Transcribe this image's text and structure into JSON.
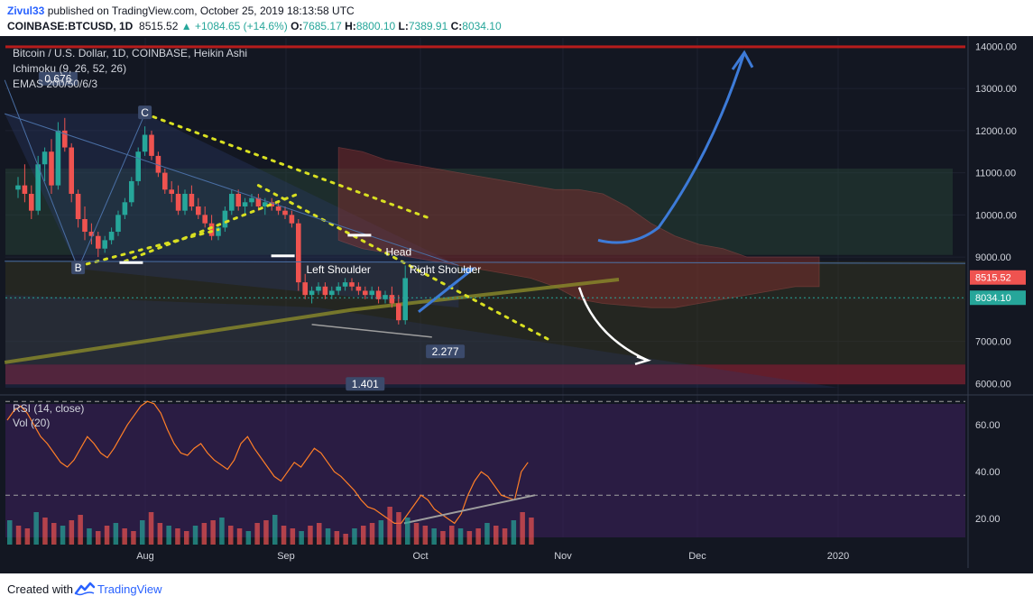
{
  "header": {
    "author": "Zivul33",
    "published": "published on TradingView.com, October 25, 2019 18:13:58 UTC",
    "symbol": "COINBASE:BTCUSD, 1D",
    "last": "8515.52",
    "change": "▲ +1084.65 (+14.6%)",
    "o_label": "O:",
    "o_value": "7685.17",
    "h_label": "H:",
    "h_value": "8800.10",
    "l_label": "L:",
    "l_value": "7389.91",
    "c_label": "C:",
    "c_value": "8034.10"
  },
  "legend": {
    "title": "Bitcoin / U.S. Dollar, 1D, COINBASE, Heikin Ashi",
    "ichimoku": "Ichimoku (9, 26, 52, 26)",
    "emas": "EMAS 200/50/6/3",
    "rsi": "RSI (14, close)",
    "vol": "Vol (20)"
  },
  "footer": {
    "created": "Created with",
    "brand": "TradingView"
  },
  "colors": {
    "background": "#131722",
    "up": "#26a69a",
    "down": "#ef5350",
    "rsi_line": "#ff7f27",
    "trend_dotted": "#d9e021",
    "ema200": "#8b8b2a",
    "blue_arrow": "#3d7bd8",
    "price_label_red": "#ef5350",
    "price_label_green": "#26a69a"
  },
  "chart_data": [
    {
      "type": "candlestick",
      "title": "Bitcoin / U.S. Dollar, 1D, COINBASE, Heikin Ashi",
      "x_labels": [
        "Aug",
        "Sep",
        "Oct",
        "Nov",
        "Dec",
        "2020"
      ],
      "y_ticks": [
        "14000.00",
        "13000.00",
        "12000.00",
        "11000.00",
        "10000.00",
        "9000.00",
        "8000.00",
        "7000.00",
        "6000.00"
      ],
      "ylim": [
        5900,
        14200
      ],
      "price_labels": [
        {
          "text": "8515.52",
          "value": 8515.52,
          "color": "red"
        },
        {
          "text": "8034.10",
          "value": 8034.1,
          "color": "green"
        }
      ],
      "annotations": [
        {
          "text": "C",
          "day": 19,
          "price": 12400
        },
        {
          "text": "B",
          "day": 9,
          "price": 8720
        },
        {
          "text": "Head",
          "day": 57,
          "price": 9100
        },
        {
          "text": "Left Shoulder",
          "day": 48,
          "price": 8680
        },
        {
          "text": "Right Shoulder",
          "day": 64,
          "price": 8680
        },
        {
          "text": "2.277",
          "day": 64,
          "price": 6730
        },
        {
          "text": "1.401",
          "day": 52,
          "price": 5960
        },
        {
          "text": "0.676",
          "day": 6,
          "price": 13200
        }
      ],
      "candles": [
        [
          10600,
          10900,
          10400,
          10700
        ],
        [
          10700,
          11200,
          10300,
          10500
        ],
        [
          10500,
          10700,
          9900,
          10100
        ],
        [
          10100,
          11400,
          10000,
          11200
        ],
        [
          11200,
          11600,
          10800,
          11500
        ],
        [
          11500,
          11800,
          10500,
          10700
        ],
        [
          10700,
          12200,
          10600,
          12000
        ],
        [
          12000,
          12300,
          11500,
          11600
        ],
        [
          11600,
          11700,
          10300,
          10500
        ],
        [
          10500,
          10600,
          9700,
          9900
        ],
        [
          9900,
          10200,
          9400,
          9600
        ],
        [
          9600,
          9800,
          9300,
          9500
        ],
        [
          9500,
          9600,
          9000,
          9200
        ],
        [
          9200,
          9500,
          9100,
          9400
        ],
        [
          9400,
          9700,
          9300,
          9600
        ],
        [
          9600,
          10100,
          9500,
          10000
        ],
        [
          10000,
          10400,
          9900,
          10300
        ],
        [
          10300,
          10900,
          10200,
          10800
        ],
        [
          10800,
          11600,
          10700,
          11500
        ],
        [
          11500,
          12100,
          11400,
          11900
        ],
        [
          11900,
          12000,
          11300,
          11400
        ],
        [
          11400,
          11500,
          10900,
          11000
        ],
        [
          11000,
          11100,
          10500,
          10600
        ],
        [
          10600,
          10800,
          10300,
          10500
        ],
        [
          10500,
          10700,
          10000,
          10100
        ],
        [
          10100,
          10600,
          10000,
          10500
        ],
        [
          10500,
          10700,
          10100,
          10200
        ],
        [
          10200,
          10400,
          9900,
          10000
        ],
        [
          10000,
          10200,
          9700,
          9800
        ],
        [
          9800,
          10000,
          9400,
          9500
        ],
        [
          9500,
          9800,
          9400,
          9700
        ],
        [
          9700,
          10200,
          9600,
          10100
        ],
        [
          10100,
          10600,
          10000,
          10500
        ],
        [
          10500,
          10600,
          10100,
          10200
        ],
        [
          10200,
          10400,
          10000,
          10300
        ],
        [
          10300,
          10500,
          10200,
          10400
        ],
        [
          10400,
          10500,
          10100,
          10200
        ],
        [
          10200,
          10400,
          10000,
          10300
        ],
        [
          10300,
          10400,
          10100,
          10200
        ],
        [
          10200,
          10300,
          10000,
          10100
        ],
        [
          10100,
          10200,
          9900,
          10000
        ],
        [
          10000,
          10100,
          9700,
          9800
        ],
        [
          9800,
          9900,
          8200,
          8400
        ],
        [
          8400,
          8600,
          8000,
          8100
        ],
        [
          8100,
          8300,
          7900,
          8200
        ],
        [
          8200,
          8400,
          8100,
          8300
        ],
        [
          8300,
          8400,
          8000,
          8100
        ],
        [
          8100,
          8300,
          8000,
          8200
        ],
        [
          8200,
          8400,
          8100,
          8300
        ],
        [
          8300,
          8500,
          8200,
          8400
        ],
        [
          8400,
          8500,
          8200,
          8300
        ],
        [
          8300,
          8400,
          8100,
          8200
        ],
        [
          8200,
          8300,
          8000,
          8100
        ],
        [
          8100,
          8300,
          8000,
          8200
        ],
        [
          8200,
          8300,
          7900,
          8000
        ],
        [
          8000,
          8200,
          7900,
          8100
        ],
        [
          8100,
          8300,
          7800,
          7900
        ],
        [
          7900,
          8100,
          7400,
          7500
        ],
        [
          7500,
          8800,
          7400,
          8500
        ]
      ]
    },
    {
      "type": "line",
      "title": "RSI (14, close)",
      "y_ticks": [
        "60.00",
        "40.00",
        "20.00"
      ],
      "ylim": [
        12,
        72
      ],
      "levels": [
        70,
        30
      ],
      "values": [
        62,
        66,
        68,
        65,
        60,
        55,
        52,
        48,
        44,
        42,
        45,
        50,
        55,
        52,
        48,
        46,
        50,
        55,
        60,
        64,
        68,
        70,
        69,
        65,
        58,
        52,
        48,
        47,
        50,
        52,
        48,
        45,
        43,
        41,
        45,
        52,
        55,
        50,
        46,
        42,
        38,
        36,
        40,
        44,
        42,
        46,
        50,
        48,
        44,
        40,
        38,
        35,
        32,
        28,
        25,
        24,
        22,
        20,
        18,
        18,
        22,
        26,
        30,
        28,
        24,
        22,
        20,
        18,
        22,
        30,
        36,
        40,
        38,
        34,
        30,
        29,
        28,
        40,
        44
      ]
    },
    {
      "type": "bar",
      "title": "Vol (20)",
      "values": [
        9,
        7,
        6,
        12,
        10,
        8,
        7,
        9,
        11,
        6,
        5,
        7,
        8,
        6,
        5,
        9,
        12,
        8,
        7,
        6,
        5,
        7,
        8,
        9,
        10,
        7,
        6,
        5,
        8,
        9,
        11,
        7,
        6,
        5,
        7,
        8,
        6,
        5,
        4,
        6,
        7,
        8,
        9,
        14,
        12,
        10,
        8,
        7,
        6,
        5,
        7,
        6,
        5,
        6,
        8,
        7,
        6,
        9,
        12,
        10
      ]
    }
  ]
}
